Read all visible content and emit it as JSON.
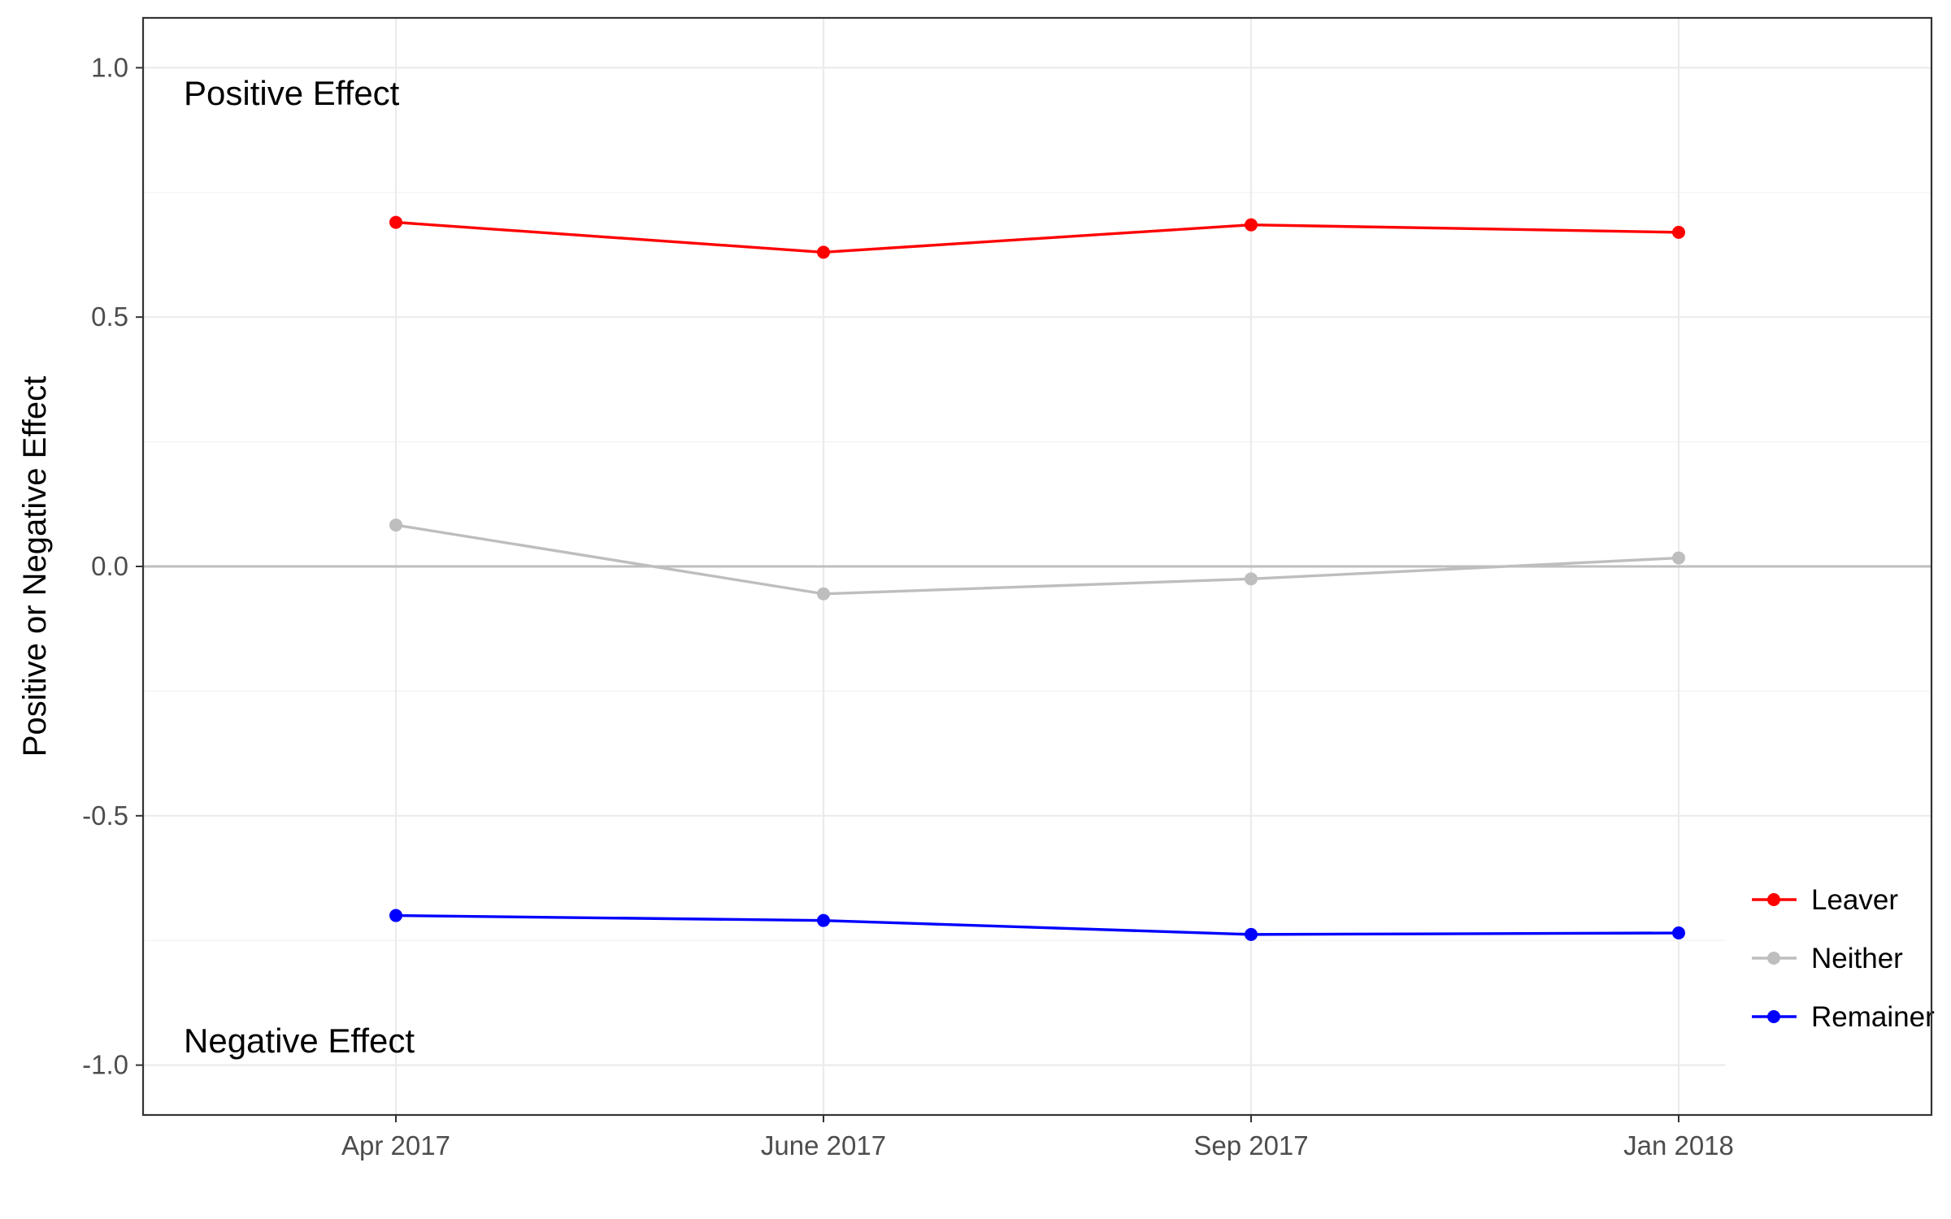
{
  "chart_data": {
    "type": "line",
    "title": "",
    "xlabel": "",
    "ylabel": "Positive or Negative Effect",
    "categories": [
      "Apr 2017",
      "June 2017",
      "Sep 2017",
      "Jan 2018"
    ],
    "ylim": [
      -1.1,
      1.1
    ],
    "yticks": [
      -1.0,
      -0.5,
      0.0,
      0.5,
      1.0
    ],
    "ytick_labels": [
      "-1.0",
      "-0.5",
      "0.0",
      "0.5",
      "1.0"
    ],
    "grid": true,
    "legend_position": "right",
    "series": [
      {
        "name": "Leaver",
        "color": "#ff0000",
        "values": [
          0.69,
          0.63,
          0.685,
          0.67
        ]
      },
      {
        "name": "Neither",
        "color": "#bebebe",
        "values": [
          0.083,
          -0.055,
          -0.025,
          0.017
        ]
      },
      {
        "name": "Remainer",
        "color": "#0000ff",
        "values": [
          -0.7,
          -0.71,
          -0.738,
          -0.735
        ]
      }
    ],
    "reference_line": {
      "y": 0,
      "color": "#bebebe"
    },
    "annotations": [
      {
        "text": "Positive Effect",
        "y": 0.95
      },
      {
        "text": "Negative Effect",
        "y": -0.95
      }
    ]
  }
}
